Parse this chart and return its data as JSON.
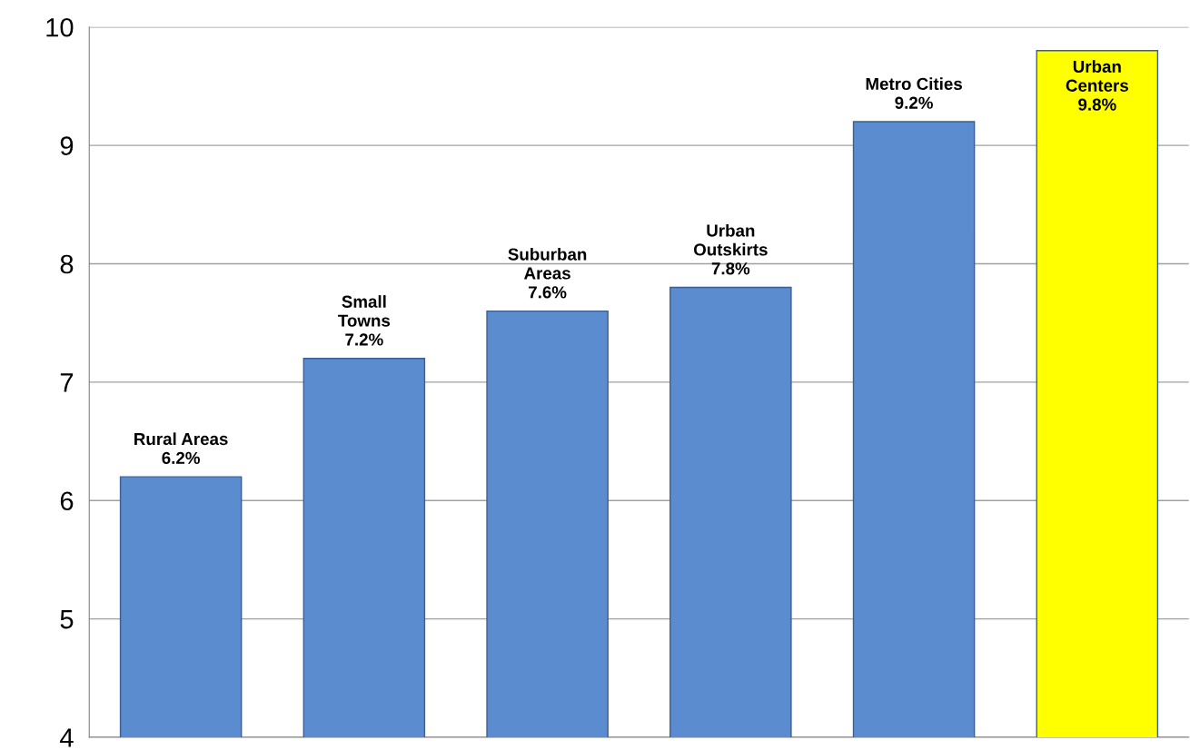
{
  "chart_data": {
    "type": "bar",
    "categories": [
      "Rural Areas",
      "Small\nTowns",
      "Suburban\nAreas",
      "Urban\nOutskirts",
      "Metro Cities",
      "Urban\nCenters"
    ],
    "values": [
      6.2,
      7.2,
      7.6,
      7.8,
      9.2,
      9.8
    ],
    "value_labels": [
      "6.2%",
      "7.2%",
      "7.6%",
      "7.8%",
      "9.2%",
      "9.8%"
    ],
    "colors": [
      "#5b8ccf",
      "#5b8ccf",
      "#5b8ccf",
      "#5b8ccf",
      "#5b8ccf",
      "#ffff00"
    ],
    "ylim": [
      4,
      10
    ],
    "yticks": [
      4,
      5,
      6,
      7,
      8,
      9,
      10
    ],
    "grid": "y",
    "legend": false
  }
}
